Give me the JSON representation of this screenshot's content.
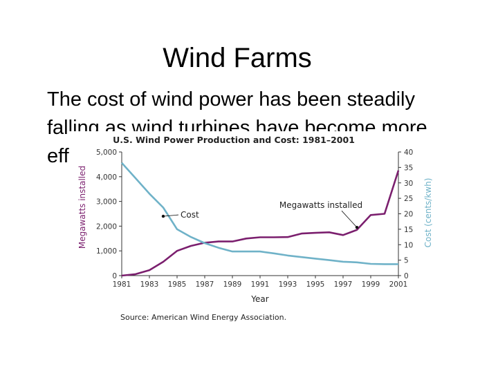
{
  "slide": {
    "title": "Wind Farms",
    "body_line1": "The cost of wind power has been steadily",
    "body_line2": "falling as wind turbines have become more",
    "body_line3": "eff"
  },
  "chart_data": {
    "type": "line",
    "title": "U.S. Wind Power Production and Cost: 1981–2001",
    "xlabel": "Year",
    "ylabel_left": "Megawatts installed",
    "ylabel_right": "Cost (cents/kwh)",
    "x_ticks": [
      "1981",
      "1983",
      "1985",
      "1987",
      "1989",
      "1991",
      "1993",
      "1995",
      "1997",
      "1999",
      "2001"
    ],
    "y_left_ticks": [
      "0",
      "1,000",
      "2,000",
      "3,000",
      "4,000",
      "5,000"
    ],
    "y_right_ticks": [
      "0",
      "5",
      "10",
      "15",
      "20",
      "25",
      "30",
      "35",
      "40"
    ],
    "xlim": [
      1981,
      2001
    ],
    "ylim_left": [
      0,
      5000
    ],
    "ylim_right": [
      0,
      40
    ],
    "series": [
      {
        "name": "Megawatts installed",
        "axis": "left",
        "color": "#7b1f6e",
        "x": [
          1981,
          1982,
          1983,
          1984,
          1985,
          1986,
          1987,
          1988,
          1989,
          1990,
          1991,
          1992,
          1993,
          1994,
          1995,
          1996,
          1997,
          1998,
          1999,
          2000,
          2001
        ],
        "y": [
          0,
          60,
          220,
          560,
          1000,
          1200,
          1330,
          1380,
          1380,
          1500,
          1550,
          1550,
          1560,
          1700,
          1730,
          1750,
          1640,
          1850,
          2450,
          2500,
          4250
        ]
      },
      {
        "name": "Cost",
        "axis": "right",
        "color": "#6fb2c8",
        "x": [
          1981,
          1982,
          1983,
          1984,
          1985,
          1986,
          1987,
          1988,
          1989,
          1990,
          1991,
          1992,
          1993,
          1994,
          1995,
          1996,
          1997,
          1998,
          1999,
          2000,
          2001
        ],
        "y": [
          36.5,
          31.5,
          26.5,
          22,
          15,
          12.5,
          10.5,
          9,
          7.8,
          7.8,
          7.8,
          7.2,
          6.5,
          6,
          5.5,
          5,
          4.5,
          4.3,
          3.8,
          3.7,
          3.7
        ]
      }
    ],
    "annotations": [
      {
        "text": "Cost",
        "series": "Cost",
        "x": 1984.0,
        "y": 19.2
      },
      {
        "text": "Megawatts installed",
        "series": "Megawatts installed",
        "x": 1998.0,
        "y": 1950
      }
    ],
    "source": "Source: American Wind Energy Association.",
    "grid": false,
    "legend": "none"
  }
}
